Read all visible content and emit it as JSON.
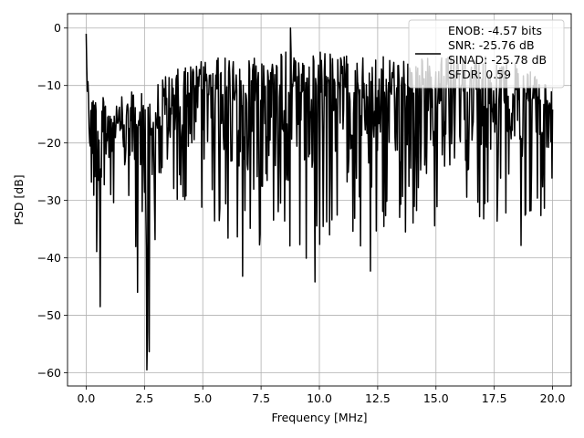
{
  "chart_data": {
    "type": "line",
    "xlabel": "Frequency [MHz]",
    "ylabel": "PSD [dB]",
    "xlim": [
      -0.8,
      20.8
    ],
    "ylim": [
      -62.3,
      2.5
    ],
    "xticks": [
      0.0,
      2.5,
      5.0,
      7.5,
      10.0,
      12.5,
      15.0,
      17.5,
      20.0
    ],
    "xtick_labels": [
      "0.0",
      "2.5",
      "5.0",
      "7.5",
      "10.0",
      "12.5",
      "15.0",
      "17.5",
      "20.0"
    ],
    "yticks": [
      0,
      -10,
      -20,
      -30,
      -40,
      -50,
      -60
    ],
    "ytick_labels": [
      "0",
      "−10",
      "−20",
      "−30",
      "−40",
      "−50",
      "−60"
    ],
    "grid": true,
    "legend_position": "top-right",
    "legend": {
      "entries": [
        "ENOB: -4.57 bits",
        "SNR: -25.76 dB",
        "SINAD: -25.78 dB",
        "SFDR: 0.59"
      ]
    },
    "series": [
      {
        "color": "#000000",
        "x_range": [
          0,
          20
        ],
        "points": 800,
        "envelope_max": [
          [
            0,
            -1
          ],
          [
            0.2,
            -10
          ],
          [
            1,
            -13
          ],
          [
            2,
            -11
          ],
          [
            3,
            -9
          ],
          [
            4,
            -7
          ],
          [
            5,
            -5.5
          ],
          [
            6,
            -5
          ],
          [
            8,
            -4
          ],
          [
            10,
            -4
          ],
          [
            12,
            -5
          ],
          [
            14,
            -5
          ],
          [
            16,
            -5
          ],
          [
            18,
            -5
          ],
          [
            20,
            -10
          ]
        ],
        "envelope_min": [
          [
            0,
            -28
          ],
          [
            0.5,
            -48.5
          ],
          [
            1,
            -35
          ],
          [
            2,
            -38
          ],
          [
            2.6,
            -59.5
          ],
          [
            3.5,
            -38
          ],
          [
            5,
            -32
          ],
          [
            6.7,
            -43
          ],
          [
            8,
            -34
          ],
          [
            9.8,
            -44
          ],
          [
            11,
            -35
          ],
          [
            12.2,
            -42
          ],
          [
            14,
            -35
          ],
          [
            16,
            -34
          ],
          [
            18.7,
            -38
          ],
          [
            20,
            -30
          ]
        ],
        "peak_values": [
          {
            "x": 0.0,
            "y": -1.0
          },
          {
            "x": 8.75,
            "y": 0.0
          }
        ],
        "dip_values": [
          {
            "x": 0.6,
            "y": -48.5
          },
          {
            "x": 2.2,
            "y": -46.0
          },
          {
            "x": 2.6,
            "y": -59.5
          },
          {
            "x": 6.7,
            "y": -43.2
          },
          {
            "x": 9.8,
            "y": -44.2
          },
          {
            "x": 12.2,
            "y": -42.3
          }
        ]
      }
    ]
  }
}
